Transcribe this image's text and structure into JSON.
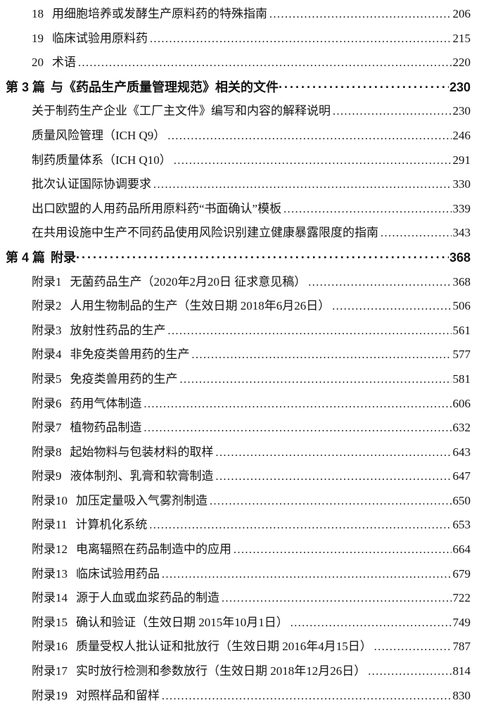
{
  "document": {
    "kind": "table-of-contents",
    "colors": {
      "text": "#141414",
      "background": "#ffffff"
    },
    "toc": {
      "rows": [
        {
          "kind": "numbered",
          "num": "18",
          "title": "用细胞培养或发酵生产原料药的特殊指南",
          "page": "206"
        },
        {
          "kind": "numbered",
          "num": "19",
          "title": "临床试验用原料药",
          "page": "215"
        },
        {
          "kind": "numbered",
          "num": "20",
          "title": "术语",
          "page": "220"
        },
        {
          "kind": "part",
          "num": "第 3 篇",
          "title": "与《药品生产质量管理规范》相关的文件",
          "page": "230"
        },
        {
          "kind": "doc",
          "title": "关于制药生产企业《工厂主文件》编写和内容的解释说明",
          "page": "230"
        },
        {
          "kind": "doc",
          "title": "质量风险管理（ICH Q9）",
          "page": "246"
        },
        {
          "kind": "doc",
          "title": "制药质量体系（ICH Q10）",
          "page": "291"
        },
        {
          "kind": "doc",
          "title": "批次认证国际协调要求",
          "page": "330"
        },
        {
          "kind": "doc",
          "title": "出口欧盟的人用药品所用原料药“书面确认”模板",
          "page": "339"
        },
        {
          "kind": "doc",
          "title": "在共用设施中生产不同药品使用风险识别建立健康暴露限度的指南",
          "page": "343"
        },
        {
          "kind": "part",
          "num": "第 4 篇",
          "title": "附录",
          "page": "368"
        },
        {
          "kind": "annex",
          "num": "附录1",
          "title": "无菌药品生产（2020年2月20日 征求意见稿）",
          "page": "368"
        },
        {
          "kind": "annex",
          "num": "附录2",
          "title": "人用生物制品的生产（生效日期 2018年6月26日）",
          "page": "506"
        },
        {
          "kind": "annex",
          "num": "附录3",
          "title": "放射性药品的生产",
          "page": "561"
        },
        {
          "kind": "annex",
          "num": "附录4",
          "title": "非免疫类兽用药的生产",
          "page": "577"
        },
        {
          "kind": "annex",
          "num": "附录5",
          "title": "免疫类兽用药的生产",
          "page": "581"
        },
        {
          "kind": "annex",
          "num": "附录6",
          "title": "药用气体制造",
          "page": "606"
        },
        {
          "kind": "annex",
          "num": "附录7",
          "title": "植物药品制造",
          "page": "632"
        },
        {
          "kind": "annex",
          "num": "附录8",
          "title": "起始物料与包装材料的取样",
          "page": "643"
        },
        {
          "kind": "annex",
          "num": "附录9",
          "title": "液体制剂、乳膏和软膏制造",
          "page": "647"
        },
        {
          "kind": "annex",
          "num": "附录10",
          "title": "加压定量吸入气雾剂制造",
          "page": "650"
        },
        {
          "kind": "annex",
          "num": "附录11",
          "title": "计算机化系统",
          "page": "653"
        },
        {
          "kind": "annex",
          "num": "附录12",
          "title": "电离辐照在药品制造中的应用",
          "page": "664"
        },
        {
          "kind": "annex",
          "num": "附录13",
          "title": "临床试验用药品",
          "page": "679"
        },
        {
          "kind": "annex",
          "num": "附录14",
          "title": "源于人血或血浆药品的制造",
          "page": "722"
        },
        {
          "kind": "annex",
          "num": "附录15",
          "title": "确认和验证（生效日期 2015年10月1日）",
          "page": "749"
        },
        {
          "kind": "annex",
          "num": "附录16",
          "title": "质量受权人批认证和批放行（生效日期 2016年4月15日）",
          "page": "787"
        },
        {
          "kind": "annex",
          "num": "附录17",
          "title": "实时放行检测和参数放行（生效日期 2018年12月26日）",
          "page": "814"
        },
        {
          "kind": "annex",
          "num": "附录19",
          "title": "对照样品和留样",
          "page": "830"
        }
      ]
    }
  }
}
